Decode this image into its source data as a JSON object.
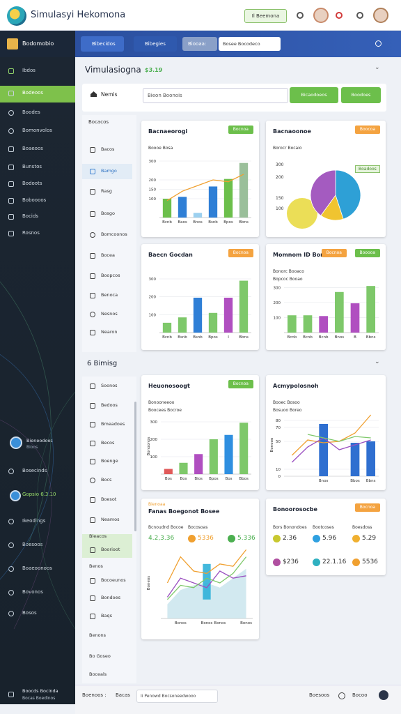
{
  "header": {
    "title": "Simulasyi Hekomona",
    "button": "Il Beemona"
  },
  "topbar": {
    "brand": "Bodomobio",
    "tabs": [
      "Bibecidos",
      "Bibegies"
    ],
    "filter_label": "Biooaa:",
    "filter_value": "Bosee Bocodeco"
  },
  "sidebar": {
    "items": [
      "Ibdos",
      "Bodeoos",
      "Boodes",
      "Bomonvolos",
      "Boaeoos",
      "Bunstos",
      "Bodoots",
      "Boboooos",
      "Bocids",
      "Rosnos"
    ],
    "profile_name": "Bieneodoos",
    "profile_sub": "Bioos",
    "lower_items": [
      "Bosecinds",
      "Gopsio 6.3.10",
      "Ikeodings",
      "Boesoos",
      "Boaeoonoos",
      "Bovonos",
      "Bosos"
    ],
    "footer_title": "Boocds Bocinda",
    "footer_sub": "Bocas Boedinos"
  },
  "sections": [
    {
      "title": "Vimulasiogna",
      "badge": "$3.19"
    },
    {
      "title": "6 Bimisg"
    }
  ],
  "search": {
    "label": "Nemis",
    "placeholder": "Bieon Boonois",
    "buttons": [
      "Bicaodoeos",
      "Boodoes"
    ]
  },
  "subnav_top": {
    "title": "Bocacos",
    "items": [
      "Bacos",
      "Bamgo",
      "Rasg",
      "Bosgo",
      "Bomcoonos",
      "Bocea",
      "Boopcos",
      "Benoca",
      "Nesnos",
      "Nearon"
    ]
  },
  "subnav_bottom": {
    "items": [
      "Soonos",
      "Bedoos",
      "Bmeadoes",
      "Becos",
      "Boenge",
      "Bocs",
      "Boesot",
      "Neamos",
      "Bleacos",
      "Boorioot",
      "Benos",
      "Bocoeunos",
      "Bondoes",
      "Baqs",
      "Benons",
      "Bo Goseo",
      "Boceals"
    ]
  },
  "cards": [
    {
      "title": "Bacnaeorogi",
      "badges": [
        {
          "text": "Bocnoa",
          "color": "#6cbf4b"
        }
      ],
      "subtitle": [
        "Boooe Bosa"
      ],
      "chart": {
        "type": "bar",
        "categories": [
          "Bcnb",
          "Baos",
          "Bnos",
          "Bsnb",
          "Bpos",
          "Bbns"
        ],
        "ylim": [
          0,
          300
        ],
        "yticks": [
          100,
          150,
          200,
          300
        ],
        "series": [
          {
            "type": "bar",
            "colors": [
              "#6cbf4b",
              "#2f7fd6",
              "#9cd0ef",
              "#2f7fd6",
              "#6cbf4b",
              "#9abf9a"
            ],
            "values": [
              100,
              110,
              25,
              165,
              205,
              290
            ]
          },
          {
            "type": "line",
            "color": "#f0a030",
            "values": [
              90,
              140,
              170,
              200,
              190,
              230
            ]
          }
        ]
      }
    },
    {
      "title": "Bacnaoonoe",
      "badges": [
        {
          "text": "Boocoa",
          "color": "#f4a340"
        }
      ],
      "subtitle": [
        "Borocr Bocaio"
      ],
      "legend": "Boadoos",
      "side_labels": [
        "300",
        "200",
        "150",
        "100"
      ],
      "chart": {
        "type": "pie",
        "values": [
          45,
          15,
          40
        ],
        "colors": [
          "#2ea0d6",
          "#f0c430",
          "#a45bc0"
        ]
      }
    },
    {
      "title": "Baecn Gocdan",
      "badges": [
        {
          "text": "Bocnoa",
          "color": "#f4a340"
        }
      ],
      "chart": {
        "type": "bar",
        "categories": [
          "Bcnb",
          "Bsnb",
          "Bsnb",
          "Bpos",
          "I",
          "Bbns"
        ],
        "ylim": [
          0,
          300
        ],
        "yticks": [
          100,
          200,
          300
        ],
        "series": [
          {
            "type": "bar",
            "colors": [
              "#7ec86a",
              "#7ec86a",
              "#2f7fd6",
              "#7ec86a",
              "#b04fc0",
              "#7ec86a"
            ],
            "values": [
              55,
              85,
              195,
              110,
              195,
              290
            ]
          }
        ]
      }
    },
    {
      "title": "Momnom ID Boroan",
      "badges": [
        {
          "text": "Booooa",
          "color": "#6cbf4b"
        },
        {
          "text": "Bocnoa",
          "color": "#f4a340"
        }
      ],
      "subtitle": [
        "Bonorc Booaco",
        "Bopcoc Booao"
      ],
      "chart": {
        "type": "bar",
        "categories": [
          "Bcnb",
          "Bcnb",
          "Bcnb",
          "Bnos",
          "B",
          "Bbns"
        ],
        "ylim": [
          0,
          320
        ],
        "yticks": [
          100,
          200,
          300
        ],
        "series": [
          {
            "type": "bar",
            "colors": [
              "#7ec86a",
              "#7ec86a",
              "#b04fc0",
              "#7ec86a",
              "#b04fc0",
              "#7ec86a"
            ],
            "values": [
              115,
              115,
              110,
              270,
              195,
              310
            ]
          }
        ]
      }
    },
    {
      "title": "Heuonosoogt",
      "badges": [
        {
          "text": "Bocnoa",
          "color": "#6cbf4b"
        }
      ],
      "subtitle": [
        "Bonooneeoo",
        "Boocees Bocroe"
      ],
      "chart": {
        "type": "bar",
        "y_label": "Bonoonos",
        "categories": [
          "Bos",
          "Bos",
          "Bios",
          "Bpos",
          "Bos",
          "Bbos"
        ],
        "ylim": [
          0,
          320
        ],
        "yticks": [
          100,
          200,
          300
        ],
        "series": [
          {
            "type": "bar",
            "colors": [
              "#e05a5a",
              "#7ec86a",
              "#b04fc0",
              "#7ec86a",
              "#2f8fe0",
              "#7ec86a"
            ],
            "values": [
              30,
              65,
              115,
              200,
              225,
              295
            ]
          }
        ]
      }
    },
    {
      "title": "Acmypolosnoh",
      "subtitle": [
        "Booec Bosoo",
        "Bosuoo Boreo"
      ],
      "chart": {
        "type": "bar",
        "y_label": "Bonooo",
        "categories": [
          null,
          null,
          "Bnos",
          null,
          "Bbos",
          "Bbns"
        ],
        "ylim": [
          0,
          90
        ],
        "yticks": [
          0,
          10,
          50,
          70,
          80
        ],
        "series": [
          {
            "type": "bar",
            "color": "#2f6fd0",
            "values": [
              null,
              null,
              75,
              null,
              48,
              50
            ]
          },
          {
            "type": "line",
            "color": "#f0a030",
            "values": [
              30,
              52,
              48,
              50,
              62,
              88
            ]
          },
          {
            "type": "line",
            "color": "#9a4fc0",
            "values": [
              20,
              42,
              55,
              38,
              45,
              52
            ]
          },
          {
            "type": "line",
            "color": "#7ec86a",
            "values": [
              null,
              60,
              55,
              50,
              57,
              55
            ]
          }
        ]
      }
    },
    {
      "tag": "Bienoaa",
      "title": "Fanas Boegonot Bosee",
      "stats": [
        {
          "label": "Bcnoudnd Bocoe",
          "value": "4.2,3.36",
          "color": "#4caf50"
        },
        {
          "label": "Bocosoas",
          "value": "5336",
          "color": "#f0a030"
        },
        {
          "value": "5.336",
          "color": "#4caf50"
        }
      ],
      "chart": {
        "type": "line",
        "y_label": "Boneos",
        "categories": [
          null,
          "Bonos",
          null,
          "Bonos",
          "Bonos",
          null,
          "Bonos"
        ],
        "ylim": [
          0,
          300
        ],
        "yticks": [],
        "series": [
          {
            "type": "area",
            "color": "#bfe0ea",
            "values": [
              60,
              120,
              140,
              150,
              130,
              170,
              210
            ]
          },
          {
            "type": "range",
            "color": "#2fb0d8",
            "low": [
              null,
              null,
              null,
              80,
              null,
              null,
              null
            ],
            "high": [
              null,
              null,
              null,
              230,
              null,
              null,
              null
            ]
          },
          {
            "type": "line",
            "color": "#f0a030",
            "values": [
              150,
              260,
              200,
              190,
              230,
              220,
              290
            ]
          },
          {
            "type": "line",
            "color": "#9a4fc0",
            "values": [
              90,
              170,
              150,
              130,
              200,
              170,
              180
            ]
          },
          {
            "type": "line",
            "color": "#7ec86a",
            "values": [
              80,
              140,
              130,
              170,
              150,
              190,
              260
            ]
          }
        ]
      }
    },
    {
      "title": "Bonoorosocbe",
      "badges": [
        {
          "text": "Bocnoa",
          "color": "#f4a340"
        }
      ],
      "stats": [
        {
          "label": "Bors Bonondoes",
          "value": "2.36",
          "color": "#c8c830"
        },
        {
          "label": "Bootcoses",
          "value": "5.96",
          "color": "#2fa0e0"
        },
        {
          "label": "Boesdoss",
          "value": "5.29",
          "color": "#f0b030"
        },
        {
          "value": "$236",
          "color": "#b04fa0"
        },
        {
          "value": "22.1.16",
          "color": "#2fb0c0"
        },
        {
          "value": "5536",
          "color": "#f0a030"
        }
      ]
    }
  ],
  "footer": {
    "left": [
      "Boenoos :",
      "Bacas"
    ],
    "input": "Ii Penowd Bocsoneedwooo",
    "right": [
      "Boesoos",
      "Bocoo"
    ]
  }
}
